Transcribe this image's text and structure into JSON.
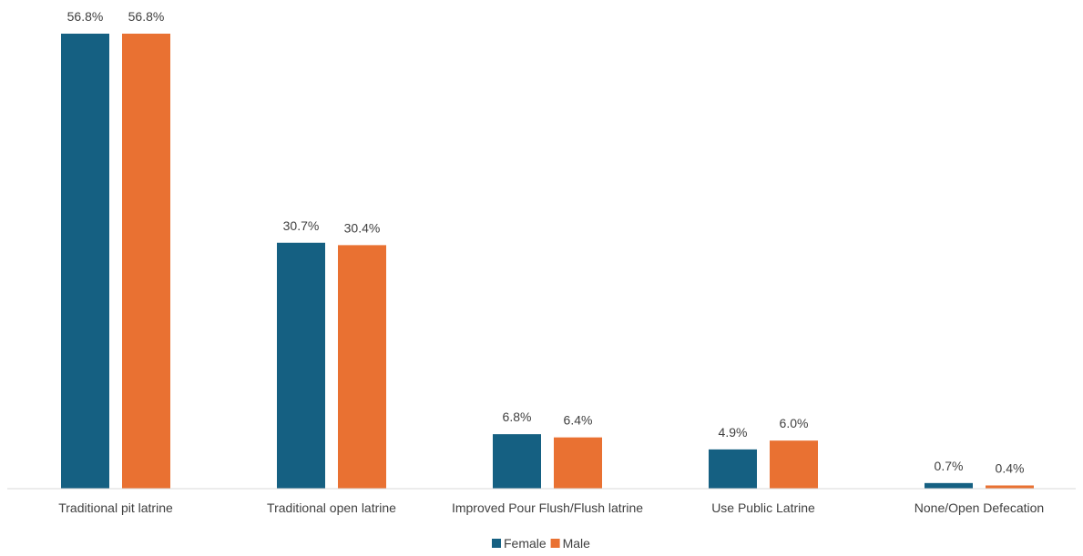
{
  "chart_data": {
    "type": "bar",
    "categories": [
      "Traditional pit latrine",
      "Traditional open latrine",
      "Improved Pour Flush/Flush latrine",
      "Use Public Latrine",
      "None/Open Defecation"
    ],
    "series": [
      {
        "name": "Female",
        "color": "#156082",
        "values": [
          56.8,
          30.7,
          6.8,
          4.9,
          0.7
        ],
        "labels": [
          "56.8%",
          "30.7%",
          "6.8%",
          "4.9%",
          "0.7%"
        ]
      },
      {
        "name": "Male",
        "color": "#E97132",
        "values": [
          56.8,
          30.4,
          6.4,
          6.0,
          0.4
        ],
        "labels": [
          "56.8%",
          "30.4%",
          "6.4%",
          "6.0%",
          "0.4%"
        ]
      }
    ],
    "ylim": [
      0,
      56.8
    ],
    "grid": false,
    "legend": "bottom"
  }
}
